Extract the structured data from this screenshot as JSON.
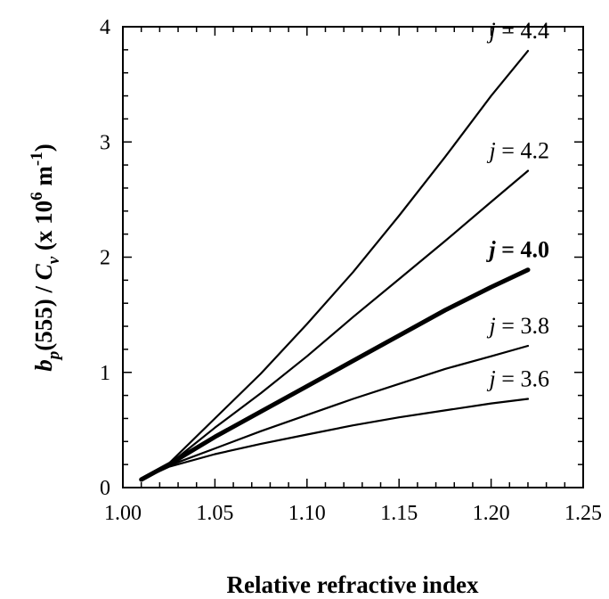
{
  "chart_data": {
    "type": "line",
    "xlabel": "Relative refractive index",
    "ylabel_parts": {
      "b": "b",
      "p": "p",
      "mid": "(555) / ",
      "C": "C",
      "v": "v",
      "rest": " (x 10",
      "exp6": "6",
      "unit": " m",
      "expm1": "-1",
      "close": ")"
    },
    "xlim": [
      1.0,
      1.25
    ],
    "ylim": [
      0,
      4
    ],
    "x_ticks": [
      "1.00",
      "1.05",
      "1.10",
      "1.15",
      "1.20",
      "1.25"
    ],
    "y_ticks": [
      "0",
      "1",
      "2",
      "3",
      "4"
    ],
    "grid": false,
    "series": [
      {
        "name": "j = 4.4",
        "var": "j",
        "eq": " = 4.4",
        "bold": false,
        "x": [
          1.01,
          1.025,
          1.05,
          1.075,
          1.1,
          1.125,
          1.15,
          1.175,
          1.2,
          1.22
        ],
        "y": [
          0.07,
          0.21,
          0.6,
          0.99,
          1.42,
          1.87,
          2.36,
          2.87,
          3.4,
          3.79
        ]
      },
      {
        "name": "j = 4.2",
        "var": "j",
        "eq": " = 4.2",
        "bold": false,
        "x": [
          1.01,
          1.025,
          1.05,
          1.075,
          1.1,
          1.125,
          1.15,
          1.175,
          1.2,
          1.22
        ],
        "y": [
          0.07,
          0.2,
          0.52,
          0.82,
          1.14,
          1.48,
          1.81,
          2.14,
          2.48,
          2.75
        ]
      },
      {
        "name": "j = 4.0",
        "var": "j",
        "eq": " = 4.0",
        "bold": true,
        "x": [
          1.01,
          1.025,
          1.05,
          1.075,
          1.1,
          1.125,
          1.15,
          1.175,
          1.2,
          1.22
        ],
        "y": [
          0.07,
          0.2,
          0.44,
          0.66,
          0.88,
          1.1,
          1.32,
          1.54,
          1.74,
          1.89
        ]
      },
      {
        "name": "j = 3.8",
        "var": "j",
        "eq": " = 3.8",
        "bold": false,
        "x": [
          1.01,
          1.025,
          1.05,
          1.075,
          1.1,
          1.125,
          1.15,
          1.175,
          1.2,
          1.22
        ],
        "y": [
          0.07,
          0.19,
          0.34,
          0.49,
          0.63,
          0.77,
          0.9,
          1.03,
          1.14,
          1.23
        ]
      },
      {
        "name": "j = 3.6",
        "var": "j",
        "eq": " = 3.6",
        "bold": false,
        "x": [
          1.01,
          1.025,
          1.05,
          1.075,
          1.1,
          1.125,
          1.15,
          1.175,
          1.2,
          1.22
        ],
        "y": [
          0.07,
          0.18,
          0.29,
          0.38,
          0.46,
          0.54,
          0.61,
          0.67,
          0.73,
          0.77
        ]
      }
    ]
  }
}
